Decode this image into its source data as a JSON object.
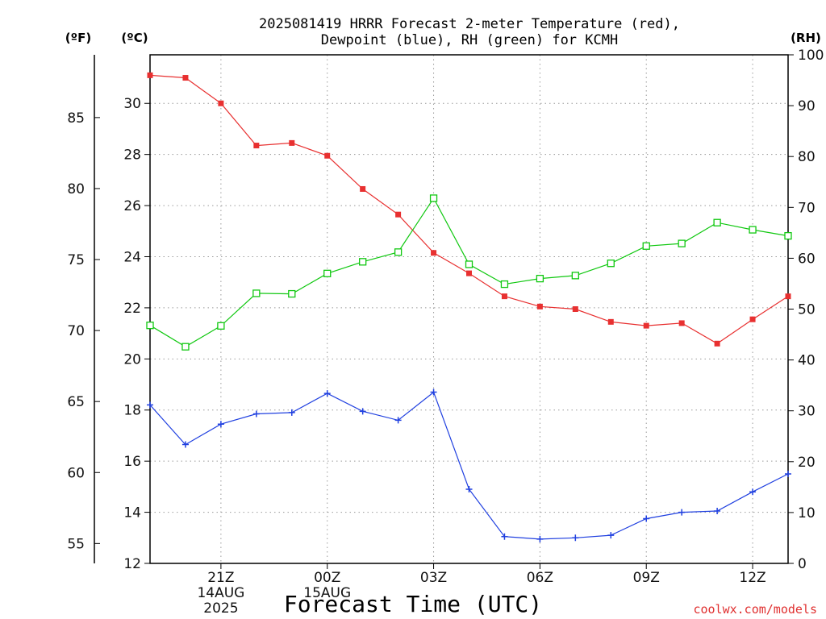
{
  "chart_data": {
    "type": "line",
    "title_line1": "2025081419 HRRR Forecast 2-meter Temperature (red),",
    "title_line2": "Dewpoint (blue), RH (green) for KCMH",
    "units": {
      "fahrenheit": "(ºF)",
      "celsius": "(ºC)",
      "rh": "(RH)"
    },
    "xlabel": "Forecast Time (UTC)",
    "credit": "coolwx.com/models",
    "x_hours": [
      0,
      1,
      2,
      3,
      4,
      5,
      6,
      7,
      8,
      9,
      10,
      11,
      12,
      13,
      14,
      15,
      16,
      17,
      18
    ],
    "x_ticks": [
      {
        "hour": 2,
        "label": "21Z",
        "date": "14AUG",
        "year": "2025"
      },
      {
        "hour": 5,
        "label": "00Z",
        "date": "15AUG",
        "year": ""
      },
      {
        "hour": 8,
        "label": "03Z",
        "date": "",
        "year": ""
      },
      {
        "hour": 11,
        "label": "06Z",
        "date": "",
        "year": ""
      },
      {
        "hour": 14,
        "label": "09Z",
        "date": "",
        "year": ""
      },
      {
        "hour": 17,
        "label": "12Z",
        "date": "",
        "year": ""
      }
    ],
    "celsius_axis": {
      "ticks": [
        12,
        14,
        16,
        18,
        20,
        22,
        24,
        26,
        28,
        30
      ],
      "range": [
        12,
        31.9
      ]
    },
    "fahrenheit_ticks": [
      55,
      60,
      65,
      70,
      75,
      80,
      85
    ],
    "rh_axis": {
      "ticks": [
        0,
        10,
        20,
        30,
        40,
        50,
        60,
        70,
        80,
        90,
        100
      ],
      "range": [
        0,
        100
      ]
    },
    "grid": true,
    "series": [
      {
        "axis": "celsius",
        "color": "#e83030",
        "marker": "filled-square",
        "values": [
          31.1,
          31.0,
          30.0,
          28.35,
          28.45,
          27.95,
          26.65,
          25.65,
          24.15,
          23.35,
          22.45,
          22.05,
          21.95,
          21.45,
          21.3,
          21.4,
          20.6,
          21.55,
          22.45
        ]
      },
      {
        "axis": "celsius",
        "color": "#2040e0",
        "marker": "plus",
        "values": [
          18.2,
          16.65,
          17.45,
          17.85,
          17.9,
          18.65,
          17.95,
          17.6,
          18.7,
          14.9,
          13.05,
          12.95,
          13.0,
          13.1,
          13.75,
          14.0,
          14.05,
          14.8,
          15.5
        ]
      },
      {
        "axis": "rh",
        "color": "#10c810",
        "marker": "open-square",
        "values": [
          46.8,
          42.6,
          46.7,
          53.1,
          53.0,
          57.0,
          59.3,
          61.2,
          71.8,
          58.8,
          54.9,
          56.0,
          56.6,
          59.0,
          62.4,
          62.9,
          67.0,
          65.6,
          64.4
        ]
      }
    ]
  }
}
